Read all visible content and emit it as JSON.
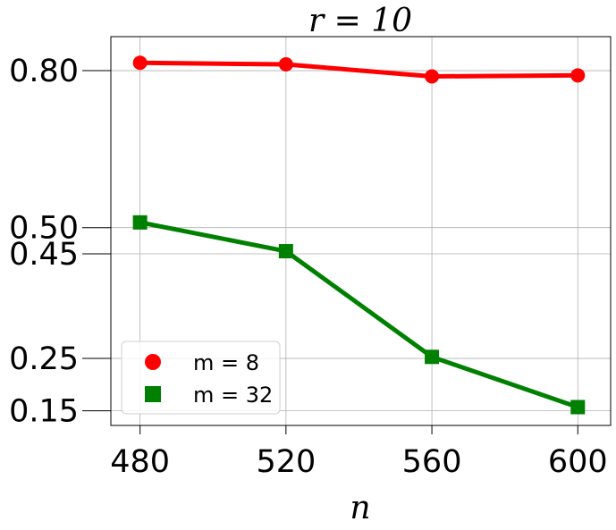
{
  "chart_data": {
    "type": "line",
    "title": "r = 10",
    "xlabel": "n",
    "ylabel": "",
    "x": [
      480,
      520,
      560,
      600
    ],
    "x_ticks": [
      "480",
      "520",
      "560",
      "600"
    ],
    "y_ticks": [
      "0.15",
      "0.25",
      "0.45",
      "0.50",
      "0.80"
    ],
    "xlim": [
      472,
      609
    ],
    "ylim": [
      0.122,
      0.865
    ],
    "grid": true,
    "legend_position": "lower-left",
    "series": [
      {
        "name": "m = 8",
        "values": [
          0.815,
          0.812,
          0.789,
          0.791
        ],
        "color": "#ff0000",
        "marker": "circle"
      },
      {
        "name": "m = 32",
        "values": [
          0.51,
          0.455,
          0.253,
          0.157
        ],
        "color": "#008000",
        "marker": "square"
      }
    ]
  }
}
